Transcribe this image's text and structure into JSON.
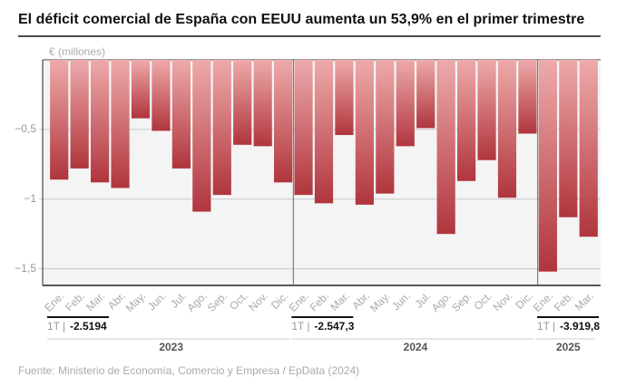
{
  "chart_data": {
    "type": "bar",
    "title": "El déficit comercial de España con EEUU aumenta un 53,9% en el primer trimestre",
    "y_label": "€ (millones)",
    "source": "Fuente: Ministerio de Economía, Comercio y Empresa / EpData (2024)",
    "color": "#b0353d",
    "color_light": "#eeaaaa",
    "ylim": [
      -1.6,
      0
    ],
    "yticks": [
      {
        "value": -0.5,
        "label": "−0,5"
      },
      {
        "value": -1,
        "label": "−1"
      },
      {
        "value": -1.5,
        "label": "−1,5"
      }
    ],
    "grid": true,
    "groups": [
      {
        "name": "2023",
        "summary_label": "1T",
        "summary": "-2.5194",
        "categories": [
          "Ene.",
          "Feb.",
          "Mar.",
          "Abr.",
          "May.",
          "Jun.",
          "Jul.",
          "Ago.",
          "Sep.",
          "Oct.",
          "Nov.",
          "Dic."
        ],
        "values": [
          -0.86,
          -0.78,
          -0.88,
          -0.92,
          -0.42,
          -0.51,
          -0.78,
          -1.09,
          -0.97,
          -0.61,
          -0.62,
          -0.88
        ]
      },
      {
        "name": "2024",
        "summary_label": "1T",
        "summary": "-2.547,3",
        "categories": [
          "Ene.",
          "Feb.",
          "Mar.",
          "Abr.",
          "May.",
          "Jun.",
          "Jul.",
          "Ago.",
          "Sep.",
          "Oct.",
          "Nov.",
          "Dic."
        ],
        "values": [
          -0.97,
          -1.03,
          -0.54,
          -1.04,
          -0.96,
          -0.62,
          -0.49,
          -1.25,
          -0.87,
          -0.72,
          -0.99,
          -0.53
        ]
      },
      {
        "name": "2025",
        "summary_label": "1T",
        "summary": "-3.919,8",
        "categories": [
          "Ene.",
          "Feb.",
          "Mar."
        ],
        "values": [
          -1.52,
          -1.13,
          -1.27
        ]
      }
    ]
  }
}
